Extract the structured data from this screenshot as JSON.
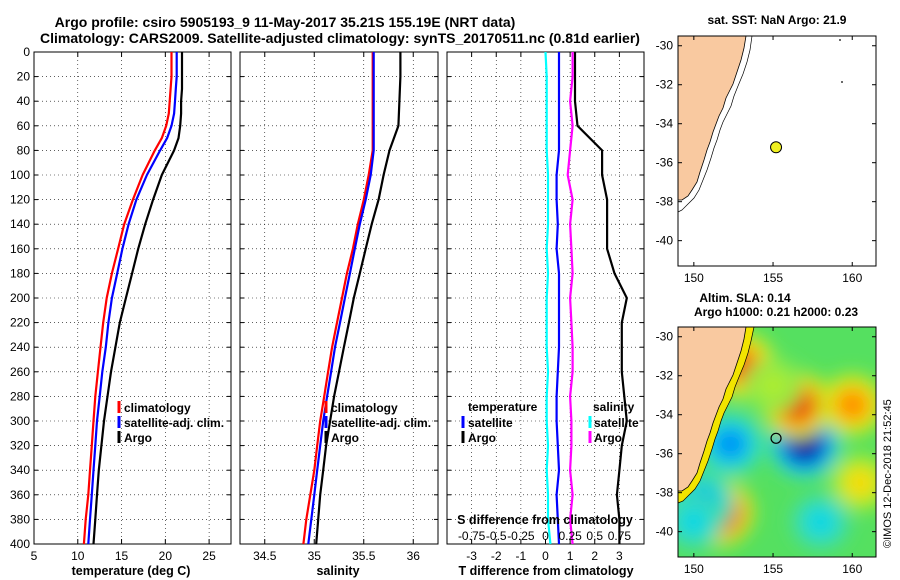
{
  "title_line1": "Argo profile: csiro 5905193_9 11-May-2017 35.21S 155.19E (NRT data)",
  "title_line2": "Climatology: CARS2009. Satellite-adjusted climatology: synTS_20170511.nc (0.81d earlier)",
  "credit": "©IMOS 12-Dec-2018 21:52:45",
  "colors": {
    "climatology": "#ff0000",
    "satellite": "#0000ff",
    "argo": "#000000",
    "cyan": "#00ffff",
    "magenta": "#ff00ff",
    "land": "#f9c9a0"
  },
  "chart_data": [
    {
      "type": "line",
      "name": "temperature-panel",
      "xlabel": "temperature (deg C)",
      "ylabel": "",
      "xlim": [
        5,
        27.5
      ],
      "ylim": [
        400,
        0
      ],
      "x_ticks": [
        5,
        10,
        15,
        20,
        25
      ],
      "x_tick_labels": [
        "5",
        "10",
        "15",
        "20",
        "25"
      ],
      "y_ticks": [
        0,
        20,
        40,
        60,
        80,
        100,
        120,
        140,
        160,
        180,
        200,
        220,
        240,
        260,
        280,
        300,
        320,
        340,
        360,
        380,
        400
      ],
      "y_tick_labels": [
        "0",
        "20",
        "40",
        "60",
        "80",
        "100",
        "120",
        "140",
        "160",
        "180",
        "200",
        "220",
        "240",
        "260",
        "280",
        "300",
        "320",
        "340",
        "360",
        "380",
        "400"
      ],
      "legend": [
        "climatology",
        "satellite-adj. clim.",
        "Argo"
      ],
      "depth": [
        0,
        10,
        20,
        30,
        40,
        50,
        60,
        70,
        80,
        100,
        120,
        140,
        160,
        180,
        200,
        220,
        240,
        260,
        280,
        300,
        320,
        340,
        360,
        380,
        400
      ],
      "series": [
        {
          "name": "climatology",
          "color": "red",
          "values": [
            20.7,
            20.7,
            20.7,
            20.6,
            20.5,
            20.4,
            20.1,
            19.6,
            18.8,
            17.4,
            16.3,
            15.3,
            14.6,
            13.9,
            13.3,
            12.9,
            12.6,
            12.3,
            12.0,
            11.8,
            11.6,
            11.4,
            11.2,
            10.9,
            10.7
          ]
        },
        {
          "name": "satellite-adj. clim.",
          "color": "blue",
          "values": [
            21.3,
            21.3,
            21.3,
            21.2,
            21.1,
            21.0,
            20.7,
            20.2,
            19.4,
            17.9,
            16.7,
            15.8,
            15.1,
            14.5,
            13.9,
            13.5,
            13.2,
            12.8,
            12.5,
            12.2,
            12.0,
            11.8,
            11.6,
            11.4,
            11.2
          ]
        },
        {
          "name": "Argo",
          "color": "black",
          "values": [
            21.9,
            21.9,
            21.9,
            21.9,
            21.8,
            21.8,
            21.7,
            21.5,
            21.0,
            19.6,
            18.6,
            17.7,
            16.9,
            16.2,
            15.5,
            14.8,
            14.3,
            13.8,
            13.4,
            13.0,
            12.7,
            12.4,
            12.2,
            12.0,
            11.8
          ]
        }
      ]
    },
    {
      "type": "line",
      "name": "salinity-panel",
      "xlabel": "salinity",
      "ylabel": "",
      "xlim": [
        34.25,
        36.25
      ],
      "ylim": [
        400,
        0
      ],
      "x_ticks": [
        34.5,
        35,
        35.5,
        36
      ],
      "x_tick_labels": [
        "34.5",
        "35",
        "35.5",
        "36"
      ],
      "legend": [
        "climatology",
        "satellite-adj. clim.",
        "Argo"
      ],
      "depth": [
        0,
        20,
        40,
        60,
        80,
        100,
        120,
        140,
        160,
        180,
        200,
        220,
        240,
        260,
        280,
        300,
        320,
        340,
        360,
        380,
        400
      ],
      "series": [
        {
          "name": "climatology",
          "color": "red",
          "values": [
            35.59,
            35.59,
            35.59,
            35.59,
            35.59,
            35.55,
            35.5,
            35.44,
            35.39,
            35.33,
            35.28,
            35.23,
            35.18,
            35.14,
            35.1,
            35.06,
            35.03,
            35.0,
            34.96,
            34.92,
            34.89
          ]
        },
        {
          "name": "satellite-adj. clim.",
          "color": "blue",
          "values": [
            35.6,
            35.6,
            35.6,
            35.6,
            35.6,
            35.57,
            35.52,
            35.46,
            35.41,
            35.36,
            35.31,
            35.26,
            35.21,
            35.17,
            35.13,
            35.09,
            35.06,
            35.03,
            35.0,
            34.97,
            34.94
          ]
        },
        {
          "name": "Argo",
          "color": "black",
          "values": [
            35.87,
            35.87,
            35.86,
            35.85,
            35.76,
            35.7,
            35.65,
            35.58,
            35.52,
            35.46,
            35.4,
            35.35,
            35.3,
            35.25,
            35.2,
            35.16,
            35.12,
            35.09,
            35.06,
            35.04,
            35.02
          ]
        }
      ]
    },
    {
      "type": "line",
      "name": "difference-panel",
      "xlabel": "T difference from climatology",
      "x2label": "S difference from climatology",
      "xlim": [
        -4,
        4
      ],
      "ylim": [
        400,
        0
      ],
      "x_ticks": [
        -3,
        -2,
        -1,
        0,
        1,
        2,
        3
      ],
      "x_tick_labels": [
        "-3",
        "-2",
        "-1",
        "0",
        "1",
        "2",
        "3"
      ],
      "x2_ticks": [
        -3,
        -2,
        -1,
        0,
        1,
        2,
        3
      ],
      "x2_tick_labels": [
        "-0.75",
        "-0.5",
        "-0.25",
        "0",
        "0.25",
        "0.5",
        "0.75"
      ],
      "legend_temperature": {
        "title": "temperature",
        "items": [
          "satellite",
          "Argo"
        ]
      },
      "legend_salinity": {
        "title": "salinity",
        "items": [
          "satellite",
          "Argo"
        ]
      },
      "depth": [
        0,
        20,
        40,
        60,
        80,
        100,
        120,
        140,
        160,
        180,
        200,
        220,
        240,
        260,
        280,
        300,
        320,
        340,
        360,
        380,
        400
      ],
      "series": [
        {
          "name": "T satellite",
          "color": "blue",
          "values": [
            0.55,
            0.55,
            0.55,
            0.55,
            0.55,
            0.45,
            0.45,
            0.5,
            0.45,
            0.55,
            0.55,
            0.55,
            0.55,
            0.5,
            0.45,
            0.45,
            0.5,
            0.55,
            0.45,
            0.5,
            0.55
          ]
        },
        {
          "name": "T Argo",
          "color": "black",
          "values": [
            1.2,
            1.2,
            1.2,
            1.3,
            2.3,
            2.3,
            2.5,
            2.5,
            2.5,
            2.8,
            3.3,
            3.1,
            3.1,
            3.1,
            3.2,
            3.3,
            3.1,
            3.0,
            2.9,
            3.0,
            3.0
          ]
        },
        {
          "name": "S satellite",
          "color": "cyan",
          "values": [
            0.0,
            0.05,
            0.05,
            0.05,
            0.05,
            0.1,
            0.1,
            0.1,
            0.05,
            0.1,
            0.05,
            0.05,
            0.05,
            0.1,
            0.05,
            0.05,
            0.1,
            0.05,
            0.1,
            0.1,
            0.2
          ]
        },
        {
          "name": "S Argo",
          "color": "magenta",
          "values": [
            1.1,
            1.1,
            1.0,
            1.1,
            1.0,
            0.9,
            1.1,
            1.0,
            1.05,
            1.1,
            1.0,
            1.05,
            1.1,
            1.1,
            1.0,
            1.05,
            1.05,
            1.0,
            1.1,
            1.0,
            1.1
          ]
        }
      ]
    },
    {
      "type": "map",
      "name": "sst-map",
      "title": "sat. SST: NaN Argo: 21.9",
      "xlim": [
        149,
        161.5
      ],
      "ylim": [
        -41.3,
        -29.5
      ],
      "x_ticks": [
        150,
        155,
        160
      ],
      "x_tick_labels": [
        "150",
        "155",
        "160"
      ],
      "y_ticks": [
        -30,
        -32,
        -34,
        -36,
        -38,
        -40
      ],
      "y_tick_labels": [
        "-30",
        "-32",
        "-34",
        "-36",
        "-38",
        "-40"
      ],
      "marker": {
        "lon": 155.19,
        "lat": -35.21,
        "color": "#f0f020"
      }
    },
    {
      "type": "heatmap",
      "name": "sla-map",
      "title_line1": "Altim. SLA: 0.14",
      "title_line2": "Argo h1000: 0.21 h2000: 0.23",
      "xlim": [
        149,
        161.5
      ],
      "ylim": [
        -41.3,
        -29.5
      ],
      "x_ticks": [
        150,
        155,
        160
      ],
      "x_tick_labels": [
        "150",
        "155",
        "160"
      ],
      "y_ticks": [
        -30,
        -32,
        -34,
        -36,
        -38,
        -40
      ],
      "y_tick_labels": [
        "-30",
        "-32",
        "-34",
        "-36",
        "-38",
        "-40"
      ],
      "marker": {
        "lon": 155.19,
        "lat": -35.21,
        "color": "#ffffff"
      },
      "eddies": [
        {
          "lon": 157.0,
          "lat": -35.5,
          "value": -1.0
        },
        {
          "lon": 151.5,
          "lat": -39.0,
          "value": 1.0
        },
        {
          "lon": 156.5,
          "lat": -33.5,
          "value": 0.8
        },
        {
          "lon": 153.0,
          "lat": -31.5,
          "value": 0.7
        },
        {
          "lon": 160.0,
          "lat": -33.5,
          "value": 0.6
        },
        {
          "lon": 160.5,
          "lat": -37.5,
          "value": 0.4
        },
        {
          "lon": 152.3,
          "lat": -35.5,
          "value": -0.6
        },
        {
          "lon": 150.5,
          "lat": -38.5,
          "value": -0.5
        },
        {
          "lon": 158.0,
          "lat": -39.5,
          "value": -0.4
        },
        {
          "lon": 150.0,
          "lat": -39.5,
          "value": -0.4
        },
        {
          "lon": 155.0,
          "lat": -32.5,
          "value": 0.2
        }
      ]
    }
  ]
}
